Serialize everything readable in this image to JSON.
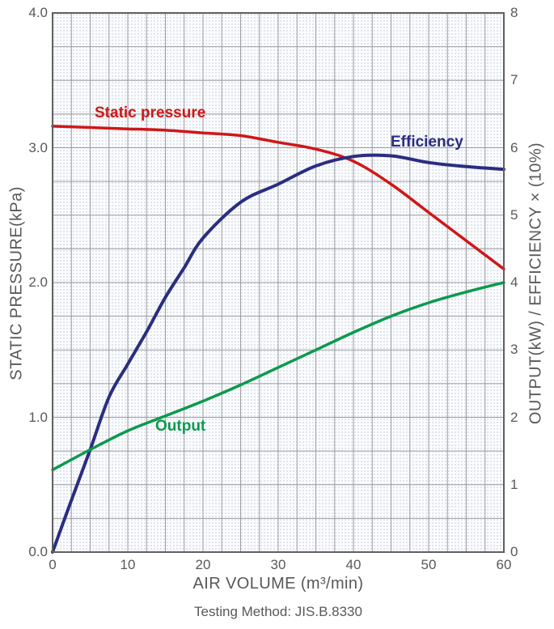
{
  "axes": {
    "x": {
      "title": "AIR VOLUME (m³/min)",
      "min": 0,
      "max": 60,
      "grid_step": 2.5,
      "tick_values": [
        0,
        10,
        20,
        30,
        40,
        50,
        60
      ],
      "tick_labels": [
        "0",
        "10",
        "20",
        "30",
        "40",
        "50",
        "60"
      ]
    },
    "y_left": {
      "title": "STATIC PRESSURE(kPa)",
      "min": 0,
      "max": 4,
      "grid_step": 0.25,
      "tick_values": [
        0,
        1,
        2,
        3,
        4
      ],
      "tick_labels": [
        "0.0",
        "1.0",
        "2.0",
        "3.0",
        "4.0"
      ]
    },
    "y_right": {
      "title": "OUTPUT(kW) / EFFICIENCY × (10%)",
      "min": 0,
      "max": 8,
      "tick_values": [
        0,
        1,
        2,
        3,
        4,
        5,
        6,
        7,
        8
      ],
      "tick_labels": [
        "0",
        "1",
        "2",
        "3",
        "4",
        "5",
        "6",
        "7",
        "8"
      ]
    }
  },
  "caption": "Testing Method: JIS.B.8330",
  "colors": {
    "static_pressure": "#cf1717",
    "efficiency": "#2a2d80",
    "output": "#0a9a4d",
    "grid": "#9c9ca0",
    "border": "#606060",
    "text": "#58585a"
  },
  "chart_data": {
    "type": "line",
    "title": "",
    "xlabel": "AIR VOLUME (m³/min)",
    "ylabel_left": "STATIC PRESSURE(kPa)",
    "ylabel_right": "OUTPUT(kW) / EFFICIENCY × (10%)",
    "x_range": [
      0,
      60
    ],
    "y_left_range": [
      0,
      4
    ],
    "y_right_range": [
      0,
      8
    ],
    "grid": true,
    "legend_position": "inline-labels",
    "series": [
      {
        "name": "Static pressure",
        "axis": "left",
        "units": "kPa",
        "color": "#cf1717",
        "x": [
          0,
          5,
          10,
          15,
          20,
          25,
          30,
          35,
          40,
          45,
          50,
          55,
          60
        ],
        "y": [
          3.16,
          3.15,
          3.14,
          3.13,
          3.11,
          3.09,
          3.04,
          2.99,
          2.9,
          2.73,
          2.52,
          2.31,
          2.1
        ]
      },
      {
        "name": "Efficiency",
        "axis": "right",
        "units": "10%",
        "color": "#2a2d80",
        "x": [
          0,
          2.5,
          5,
          7.5,
          10,
          12.5,
          15,
          17.5,
          20,
          25,
          30,
          35,
          40,
          45,
          50,
          55,
          60
        ],
        "y": [
          0,
          0.77,
          1.52,
          2.3,
          2.79,
          3.27,
          3.78,
          4.22,
          4.66,
          5.19,
          5.46,
          5.73,
          5.87,
          5.88,
          5.78,
          5.72,
          5.68
        ]
      },
      {
        "name": "Output",
        "axis": "right",
        "units": "kW",
        "color": "#0a9a4d",
        "x": [
          0,
          5,
          10,
          15,
          20,
          25,
          30,
          35,
          40,
          45,
          50,
          55,
          60
        ],
        "y": [
          1.22,
          1.52,
          1.8,
          2.02,
          2.24,
          2.48,
          2.74,
          3.0,
          3.26,
          3.5,
          3.7,
          3.86,
          4.0
        ]
      }
    ]
  }
}
